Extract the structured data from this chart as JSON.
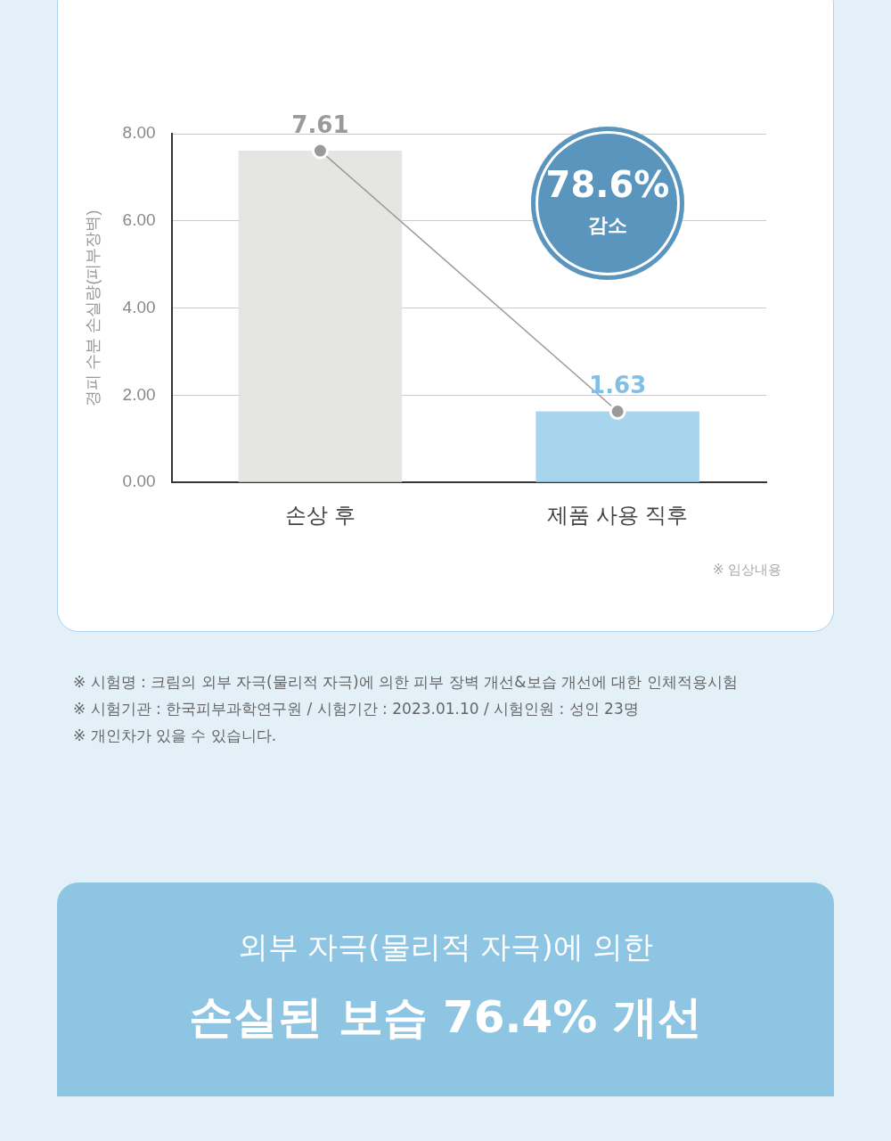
{
  "chart_data": {
    "type": "bar",
    "ylabel": "경피 수분 손실량(피부장벽)",
    "categories": [
      "손상 후",
      "제품 사용 직후"
    ],
    "series": [
      {
        "colors": [
          "#e5e5e3",
          "#a8d5ee"
        ],
        "values": [
          7.61,
          1.63
        ],
        "value_labels": [
          "7.61",
          "1.63"
        ]
      },
      {
        "type": "line",
        "color": "#9a9a9a",
        "values": [
          7.61,
          1.63
        ]
      }
    ],
    "ylim": [
      0,
      8
    ],
    "yticks": [
      {
        "value": 0,
        "label": "0.00"
      },
      {
        "value": 2,
        "label": "2.00"
      },
      {
        "value": 4,
        "label": "4.00"
      },
      {
        "value": 6,
        "label": "6.00"
      },
      {
        "value": 8,
        "label": "8.00"
      }
    ],
    "grid": "y",
    "marker": "circle",
    "legend": false,
    "annotations": [
      "78.6%",
      "감소",
      "※ 임상내용",
      "※ 시험명 : 크림의 외부 자극(물리적 자극)에 의한 피부 장벽 개선&보습 개선에 대한 인체적용시험",
      "※ 시험기관 : 한국피부과학연구원 / 시험기간 : 2023.01.10 / 시험인원 : 성인 23명",
      "※ 개인차가 있을 수 있습니다.",
      "외부 자극(물리적 자극)에 의한",
      "손실된 보습 76.4% 개선"
    ]
  }
}
